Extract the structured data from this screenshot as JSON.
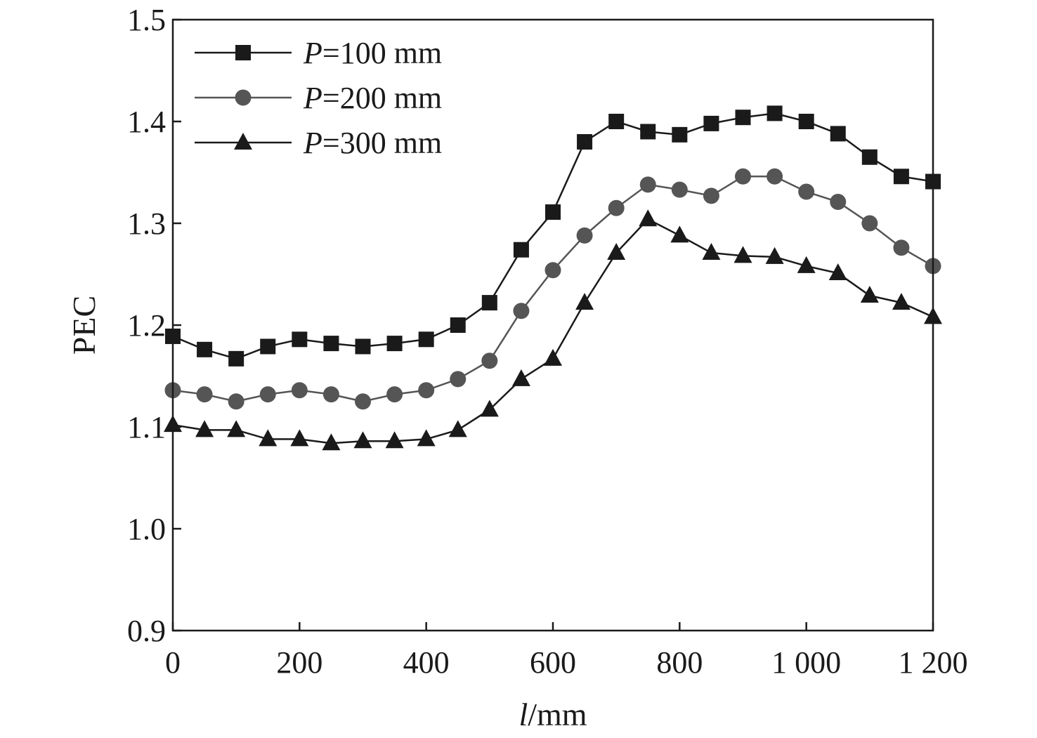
{
  "chart_data": {
    "type": "line",
    "xlabel": {
      "var": "l",
      "unit": "/mm"
    },
    "ylabel": "PEC",
    "xlim": [
      0,
      1200
    ],
    "ylim": [
      0.9,
      1.5
    ],
    "xticks": [
      0,
      200,
      400,
      600,
      800,
      1000,
      1200
    ],
    "xtick_labels": [
      "0",
      "200",
      "400",
      "600",
      "800",
      "1 000",
      "1 200"
    ],
    "yticks": [
      0.9,
      1.0,
      1.1,
      1.2,
      1.3,
      1.4,
      1.5
    ],
    "ytick_labels": [
      "0.9",
      "1.0",
      "1.1",
      "1.2",
      "1.3",
      "1.4",
      "1.5"
    ],
    "grid": false,
    "legend_position": "top-left",
    "x": [
      0,
      50,
      100,
      150,
      200,
      250,
      300,
      350,
      400,
      450,
      500,
      550,
      600,
      650,
      700,
      750,
      800,
      850,
      900,
      950,
      1000,
      1050,
      1100,
      1150,
      1200
    ],
    "series": [
      {
        "name": "=100 mm",
        "name_prefix": "P",
        "marker": "square",
        "color": "#1a1a1a",
        "values": [
          1.189,
          1.176,
          1.167,
          1.179,
          1.186,
          1.182,
          1.179,
          1.182,
          1.186,
          1.2,
          1.222,
          1.274,
          1.311,
          1.38,
          1.4,
          1.39,
          1.387,
          1.398,
          1.404,
          1.408,
          1.4,
          1.388,
          1.365,
          1.346,
          1.341
        ]
      },
      {
        "name": "=200 mm",
        "name_prefix": "P",
        "marker": "circle",
        "color": "#555555",
        "values": [
          1.136,
          1.132,
          1.125,
          1.132,
          1.136,
          1.132,
          1.125,
          1.132,
          1.136,
          1.147,
          1.165,
          1.214,
          1.254,
          1.288,
          1.315,
          1.338,
          1.333,
          1.327,
          1.346,
          1.346,
          1.331,
          1.321,
          1.3,
          1.276,
          1.258
        ]
      },
      {
        "name": "=300 mm",
        "name_prefix": "P",
        "marker": "triangle",
        "color": "#1a1a1a",
        "values": [
          1.102,
          1.097,
          1.097,
          1.088,
          1.088,
          1.084,
          1.086,
          1.086,
          1.088,
          1.097,
          1.117,
          1.147,
          1.167,
          1.222,
          1.271,
          1.304,
          1.288,
          1.271,
          1.268,
          1.267,
          1.258,
          1.251,
          1.229,
          1.222,
          1.208
        ]
      }
    ]
  }
}
